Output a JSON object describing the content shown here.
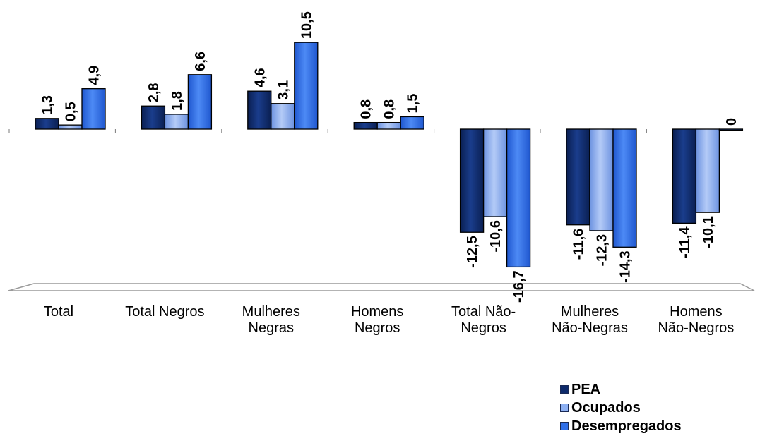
{
  "colors": {
    "pea": "#0d2a6b",
    "ocupados": "#8db0f2",
    "desempregados": "#2f6fe8"
  },
  "chart_data": {
    "type": "bar",
    "categories": [
      "Total",
      "Total Negros",
      "Mulheres Negras",
      "Homens Negros",
      "Total Não-Negros",
      "Mulheres Não-Negras",
      "Homens Não-Negros"
    ],
    "category_lines": [
      [
        "Total"
      ],
      [
        "Total Negros"
      ],
      [
        "Mulheres",
        "Negras"
      ],
      [
        "Homens",
        "Negros"
      ],
      [
        "Total Não-",
        "Negros"
      ],
      [
        "Mulheres",
        "Não-Negras"
      ],
      [
        "Homens",
        "Não-Negros"
      ]
    ],
    "series": [
      {
        "name": "PEA",
        "values": [
          1.3,
          2.8,
          4.6,
          0.8,
          -12.5,
          -11.6,
          -11.4
        ],
        "labels": [
          "1,3",
          "2,8",
          "4,6",
          "0,8",
          "-12,5",
          "-11,6",
          "-11,4"
        ]
      },
      {
        "name": "Ocupados",
        "values": [
          0.5,
          1.8,
          3.1,
          0.8,
          -10.6,
          -12.3,
          -10.1
        ],
        "labels": [
          "0,5",
          "1,8",
          "3,1",
          "0,8",
          "-10,6",
          "-12,3",
          "-10,1"
        ]
      },
      {
        "name": "Desempregados",
        "values": [
          4.9,
          6.6,
          10.5,
          1.5,
          -16.7,
          -14.3,
          0
        ],
        "labels": [
          "4,9",
          "6,6",
          "10,5",
          "1,5",
          "-16,7",
          "-14,3",
          "0"
        ]
      }
    ],
    "legend_position": "bottom-right",
    "grid": false
  }
}
